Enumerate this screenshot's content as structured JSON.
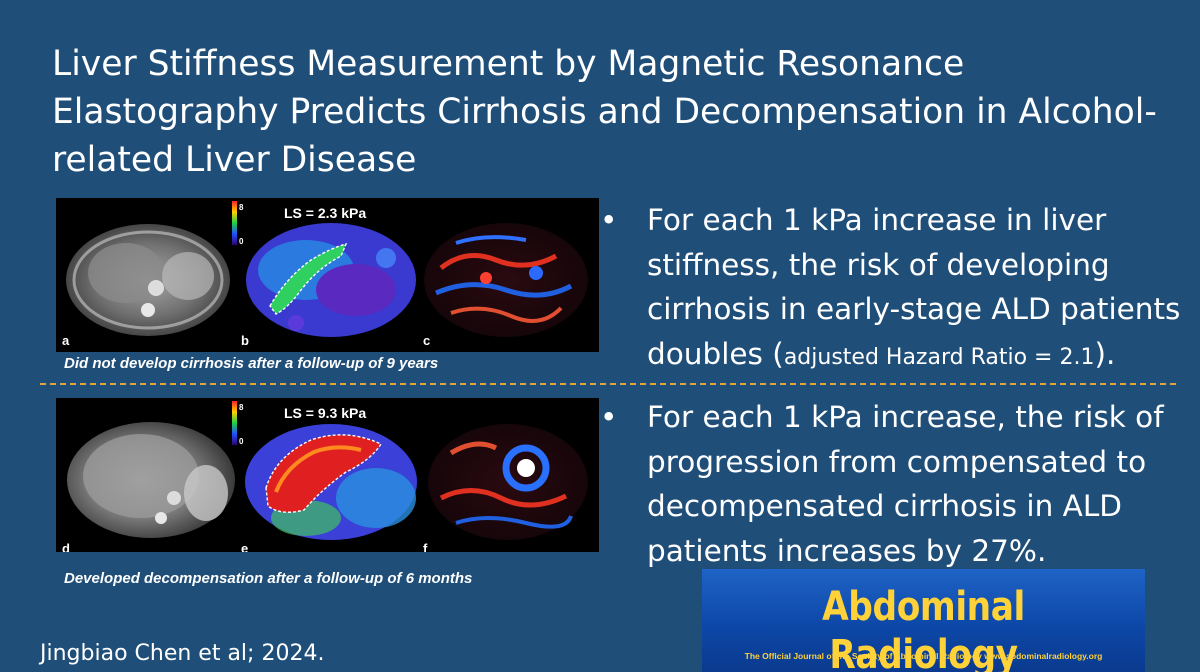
{
  "title": "Liver Stiffness Measurement by Magnetic Resonance Elastography Predicts Cirrhosis and Decompensation in Alcohol-related Liver Disease",
  "figure_top": {
    "panel_labels": [
      "a",
      "b",
      "c"
    ],
    "scale_max": "8",
    "scale_min": "0",
    "ls_value": "LS = 2.3 kPa",
    "caption": "Did not develop cirrhosis after a follow-up of 9 years"
  },
  "figure_bottom": {
    "panel_labels": [
      "d",
      "e",
      "f"
    ],
    "scale_max": "8",
    "scale_min": "0",
    "ls_value": "LS = 9.3 kPa",
    "caption": "Developed decompensation after a follow-up of 6 months"
  },
  "bullets": [
    {
      "marker": "•",
      "text": "For each 1 kPa increase in liver stiffness, the risk of developing cirrhosis in early-stage ALD patients doubles (",
      "small": "adjusted Hazard Ratio = 2.1",
      "tail": ")."
    },
    {
      "marker": "•",
      "text": "For each 1 kPa increase, the risk of progression from compensated to decompensated cirrhosis in ALD patients increases by 27%."
    }
  ],
  "citation": "Jingbiao Chen et al; 2024.",
  "journal": {
    "name": "Abdominal Radiology",
    "tagline": "The Official Journal of the Society of Abdominal Radiology www.abdominalradiology.org"
  },
  "colors": {
    "background": "#1f4e79",
    "divider": "#e3a43a",
    "journal_text": "#ffd23a"
  }
}
